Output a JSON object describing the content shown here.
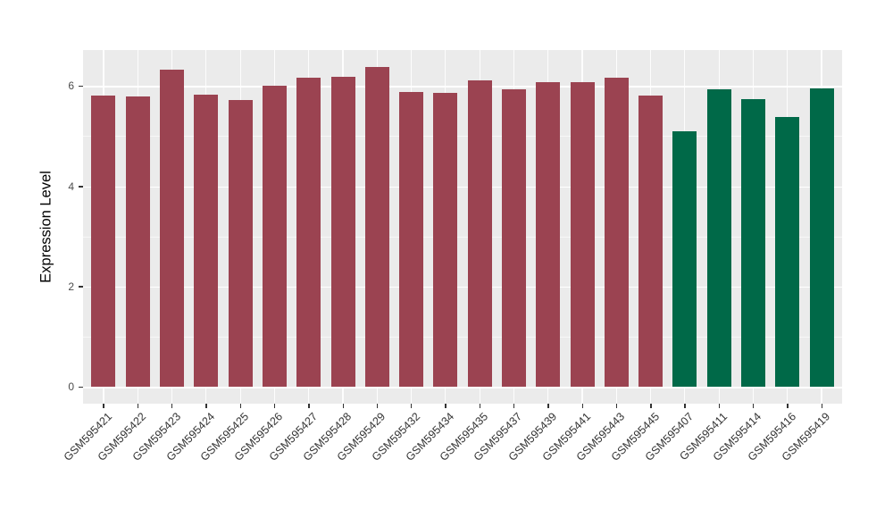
{
  "chart_data": {
    "type": "bar",
    "title": "",
    "xlabel": "",
    "ylabel": "Expression Level",
    "categories": [
      "GSM595421",
      "GSM595422",
      "GSM595423",
      "GSM595424",
      "GSM595425",
      "GSM595426",
      "GSM595427",
      "GSM595428",
      "GSM595429",
      "GSM595432",
      "GSM595434",
      "GSM595435",
      "GSM595437",
      "GSM595439",
      "GSM595441",
      "GSM595443",
      "GSM595445",
      "GSM595407",
      "GSM595411",
      "GSM595414",
      "GSM595416",
      "GSM595419"
    ],
    "values": [
      5.81,
      5.8,
      6.33,
      5.83,
      5.72,
      6.01,
      6.16,
      6.19,
      6.38,
      5.88,
      5.86,
      6.12,
      5.94,
      6.07,
      6.07,
      6.17,
      5.81,
      5.1,
      5.93,
      5.74,
      5.38,
      5.96
    ],
    "groups": [
      "red",
      "red",
      "red",
      "red",
      "red",
      "red",
      "red",
      "red",
      "red",
      "red",
      "red",
      "red",
      "red",
      "red",
      "red",
      "red",
      "red",
      "green",
      "green",
      "green",
      "green",
      "green"
    ],
    "group_colors": {
      "red": "#9B4351",
      "green": "#006948"
    },
    "yticks": [
      0,
      2,
      4,
      6
    ],
    "ytick_labels": [
      "0",
      "2",
      "4",
      "6"
    ],
    "minor_gridlines": [
      1,
      3,
      5
    ],
    "ylim": [
      -0.32,
      6.72
    ],
    "grid": true,
    "legend_position": "none",
    "x_tick_rotation_deg": 45,
    "bar_width_ratio": 0.7
  },
  "style": {
    "panel_background": "#EBEBEB",
    "gridline_color": "#FFFFFF",
    "tick_mark_color": "#333333",
    "ytick_text_color": "#4D4D4D",
    "xtick_text_color": "#333333",
    "axis_title_color": "#000000",
    "figure_background": "#FFFFFF"
  }
}
